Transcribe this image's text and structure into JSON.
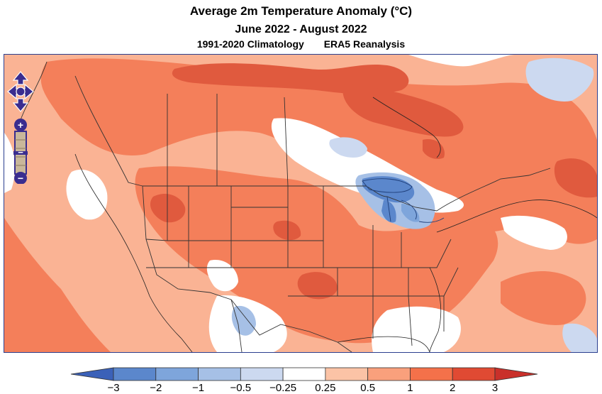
{
  "title": "Average 2m Temperature Anomaly (°C)",
  "period": "June 2022 - August 2022",
  "climatology": "1991-2020 Climatology",
  "dataset": "ERA5 Reanalysis",
  "map_controls": {
    "pan_icon": "pan-arrows-icon",
    "zoom_in_label": "+",
    "zoom_out_label": "−"
  },
  "legend": {
    "tick_labels": [
      "−3",
      "−2",
      "−1",
      "−0.5",
      "−0.25",
      "0.25",
      "0.5",
      "1",
      "2",
      "3"
    ],
    "bins": [
      {
        "range": "< −3",
        "color": "#3b61b8"
      },
      {
        "range": "−3 to −2",
        "color": "#5b87cc"
      },
      {
        "range": "−2 to −1",
        "color": "#7ea5db"
      },
      {
        "range": "−1 to −0.5",
        "color": "#a6c0e6"
      },
      {
        "range": "−0.5 to −0.25",
        "color": "#ccd9f0"
      },
      {
        "range": "−0.25 to 0.25",
        "color": "#ffffff"
      },
      {
        "range": "0.25 to 0.5",
        "color": "#fbc3a6"
      },
      {
        "range": "0.5 to 1",
        "color": "#f9a07c"
      },
      {
        "range": "1 to 2",
        "color": "#f4714a"
      },
      {
        "range": "2 to 3",
        "color": "#e04a33"
      },
      {
        "range": "> 3",
        "color": "#c9302a"
      }
    ]
  },
  "colors": {
    "frame_border": "#2b3f8f",
    "control_fill": "#3a2d8f",
    "control_track": "#c9b79a"
  }
}
